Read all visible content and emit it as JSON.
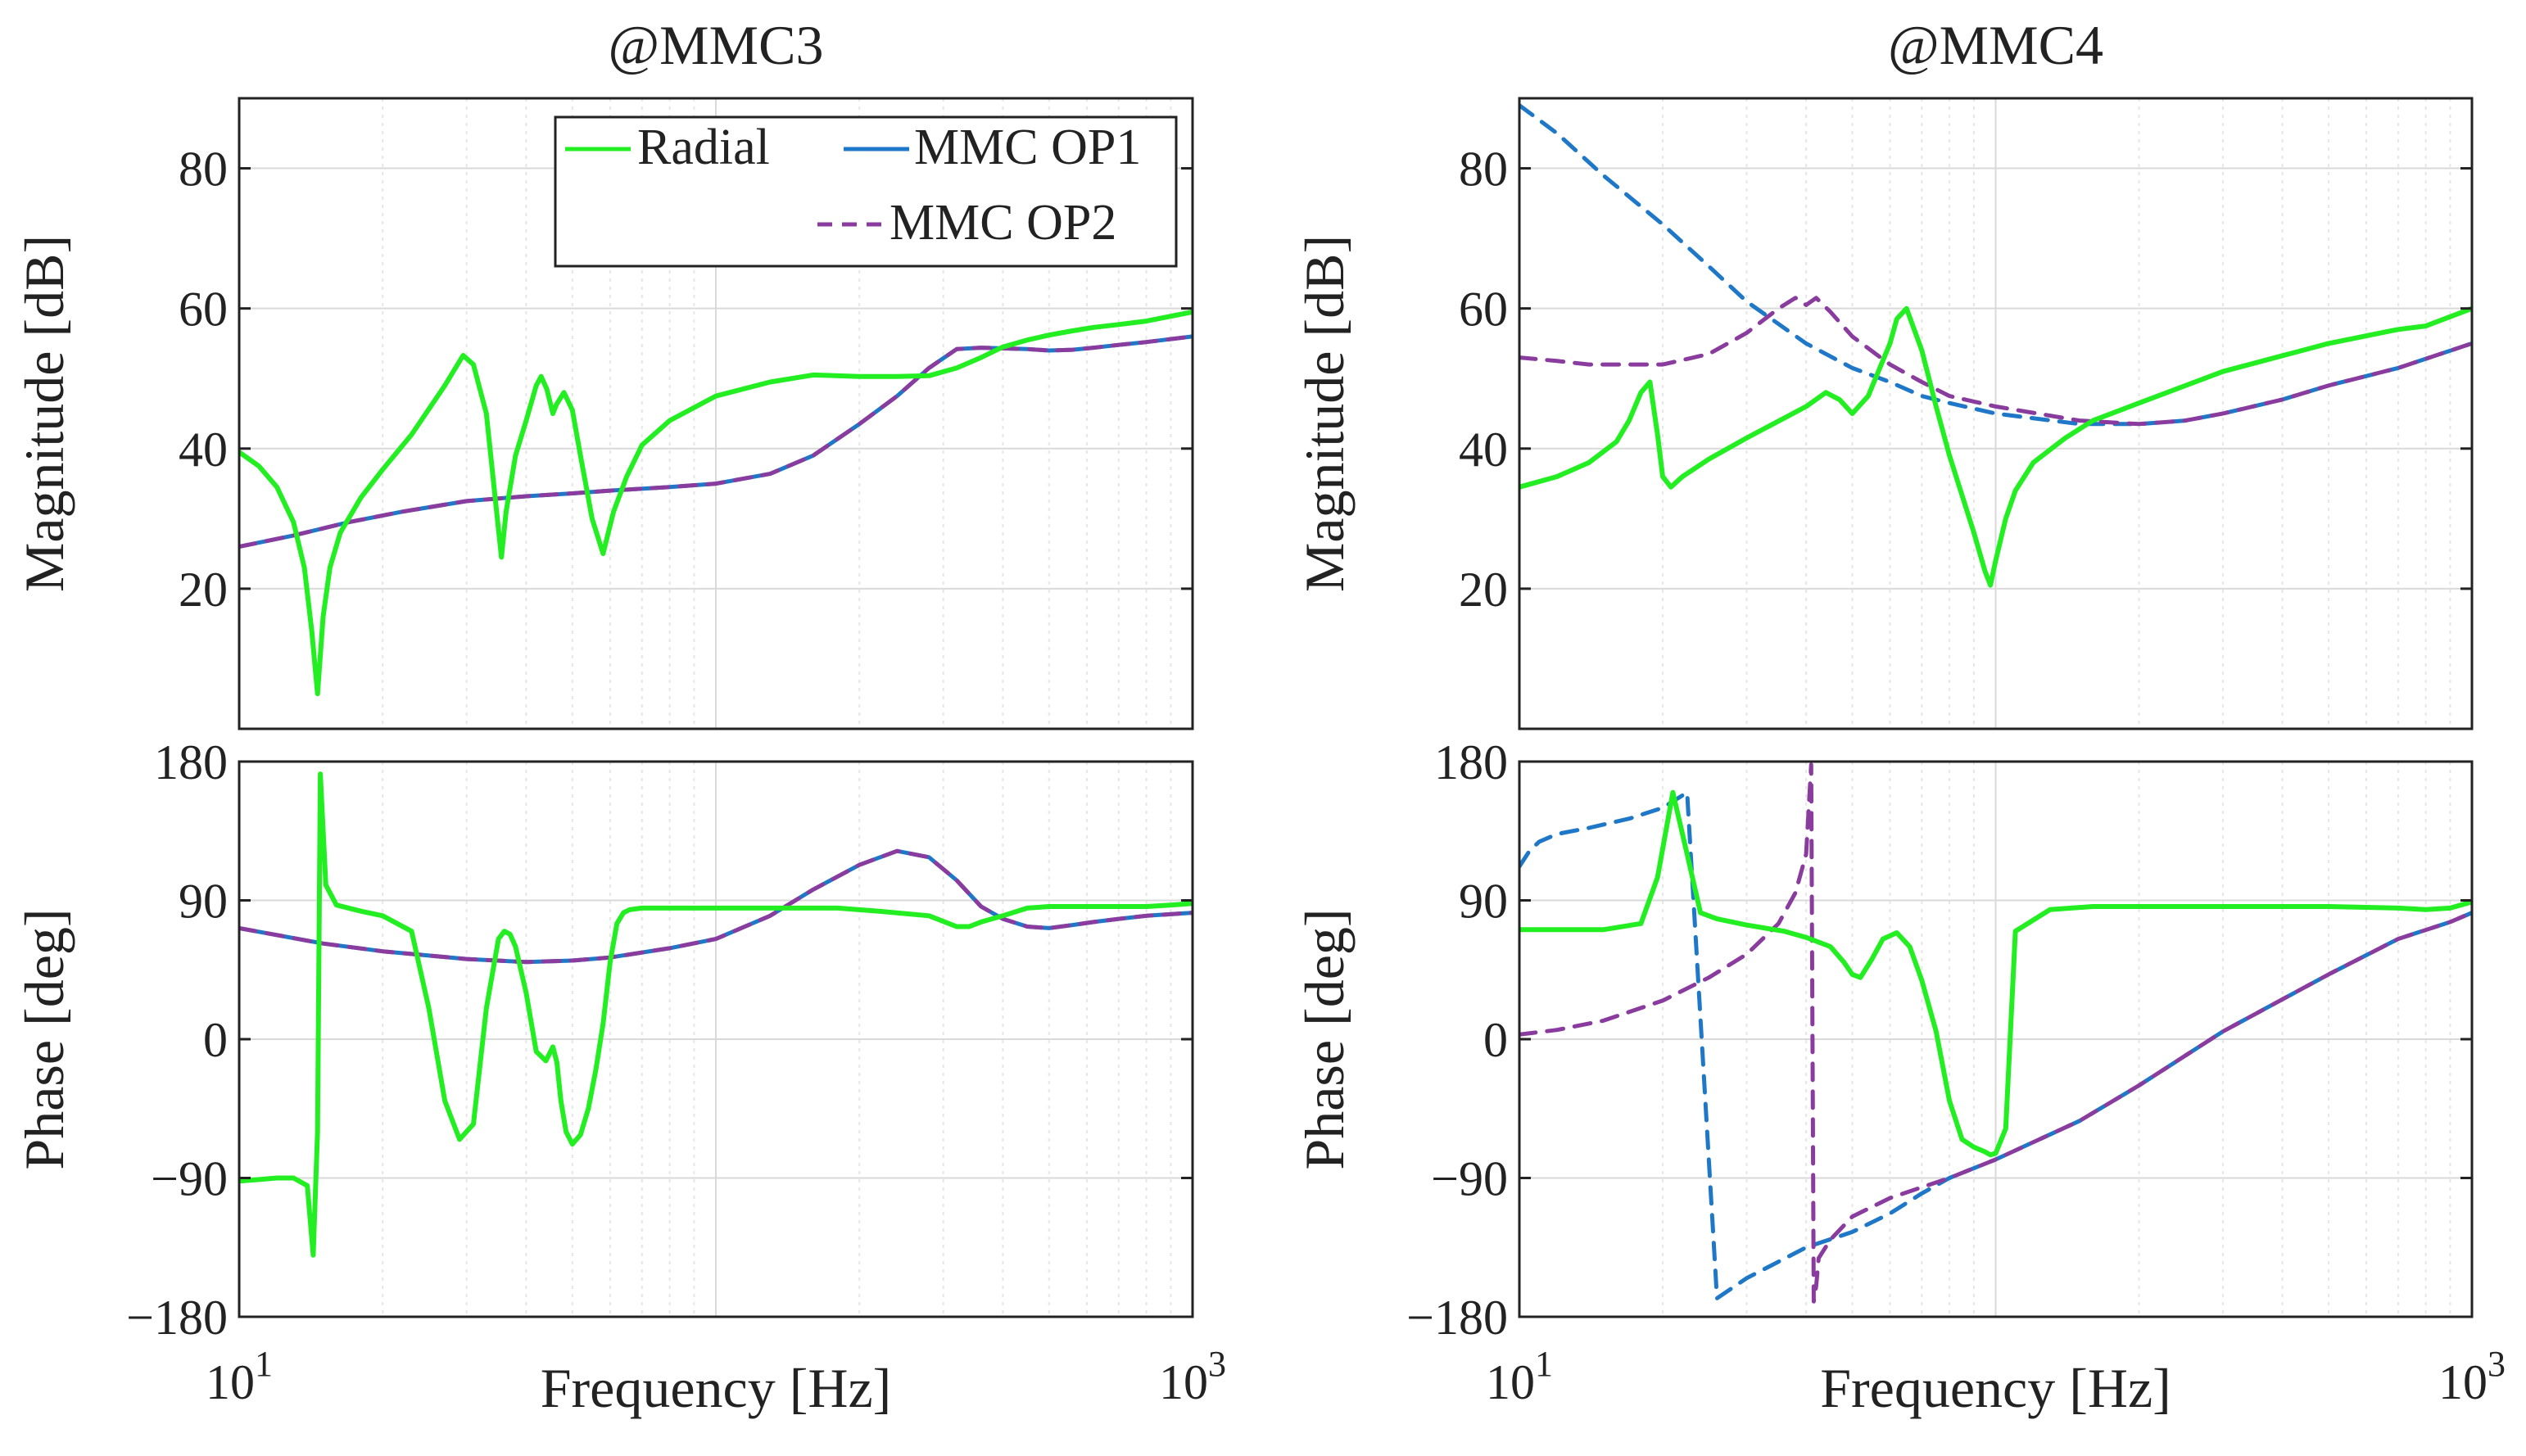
{
  "figure": {
    "colors": {
      "radial": "#22ee22",
      "op1": "#1f77c8",
      "op2": "#8a3c9e",
      "axes": "#222222",
      "grid": "#d9d9d9",
      "grid_minor": "#e6e6e6"
    }
  },
  "chart_data": [
    {
      "type": "line",
      "panel": "mag",
      "title": "@MMC3",
      "xlabel": "",
      "ylabel": "Magnitude [dB]",
      "xscale": "log",
      "xlim": [
        10,
        1000
      ],
      "ylim": [
        0,
        90
      ],
      "yticks": [
        20,
        40,
        60,
        80
      ],
      "ytick_labels": [
        "20",
        "40",
        "60",
        "80"
      ],
      "grid": true,
      "legend": {
        "location": "top-right",
        "entries": [
          {
            "label": "Radial",
            "series": "radial",
            "style": "solid"
          },
          {
            "label": "MMC OP1",
            "series": "op1",
            "style": "solid"
          },
          {
            "label": "MMC OP2",
            "series": "op2",
            "style": "dashed"
          }
        ]
      },
      "series": [
        {
          "name": "MMC OP1",
          "key": "op1",
          "style": "solid",
          "x": [
            10,
            13,
            17,
            22,
            30,
            40,
            50,
            60,
            80,
            100,
            130,
            160,
            200,
            240,
            280,
            320,
            360,
            400,
            450,
            500,
            560,
            620,
            700,
            800,
            1000
          ],
          "y": [
            26,
            27.6,
            29.5,
            31,
            32.5,
            33.2,
            33.6,
            34,
            34.5,
            35,
            36.4,
            39,
            43.5,
            47.5,
            51.5,
            54.2,
            54.4,
            54.3,
            54.2,
            54,
            54.1,
            54.4,
            54.8,
            55.2,
            56
          ]
        },
        {
          "name": "MMC OP2",
          "key": "op2",
          "style": "dashed",
          "x": [
            10,
            13,
            17,
            22,
            30,
            40,
            50,
            60,
            80,
            100,
            130,
            160,
            200,
            240,
            280,
            320,
            360,
            400,
            450,
            500,
            560,
            620,
            700,
            800,
            1000
          ],
          "y": [
            26,
            27.6,
            29.5,
            31,
            32.5,
            33.2,
            33.6,
            34,
            34.5,
            35,
            36.4,
            39,
            43.5,
            47.5,
            51.5,
            54.2,
            54.4,
            54.3,
            54.2,
            54,
            54.1,
            54.4,
            54.8,
            55.2,
            56
          ]
        },
        {
          "name": "Radial",
          "key": "radial",
          "style": "solid",
          "x": [
            10,
            11,
            12,
            13,
            13.7,
            14.2,
            14.6,
            15,
            15.5,
            16.3,
            18,
            20,
            23,
            27,
            29.5,
            31,
            33,
            34.8,
            35.5,
            36.3,
            38,
            40,
            42,
            43,
            44.2,
            45.5,
            46.3,
            48,
            50,
            52,
            55,
            58,
            61,
            65,
            70,
            80,
            100,
            130,
            160,
            200,
            240,
            280,
            320,
            360,
            400,
            450,
            500,
            560,
            620,
            700,
            800,
            1000
          ],
          "y": [
            39.5,
            37.5,
            34.5,
            29.5,
            23,
            14,
            5,
            16,
            23,
            28,
            33,
            37,
            42,
            49,
            53.3,
            52,
            45,
            30,
            24.5,
            31,
            39,
            44,
            49,
            50.3,
            48.5,
            45,
            46.3,
            48,
            45.5,
            39,
            30,
            25,
            31,
            36,
            40.5,
            44,
            47.5,
            49.5,
            50.5,
            50.3,
            50.3,
            50.4,
            51.5,
            53,
            54.5,
            55.5,
            56.2,
            56.8,
            57.3,
            57.7,
            58.2,
            59.5
          ]
        }
      ]
    },
    {
      "type": "line",
      "panel": "phase",
      "title": "",
      "xlabel": "Frequency [Hz]",
      "ylabel": "Phase [deg]",
      "xscale": "log",
      "xlim": [
        10,
        1000
      ],
      "xticks": [
        10,
        1000
      ],
      "xtick_labels": [
        {
          "base": "10",
          "exp": "1"
        },
        {
          "base": "10",
          "exp": "3"
        }
      ],
      "ylim": [
        -180,
        180
      ],
      "yticks": [
        -180,
        -90,
        0,
        90,
        180
      ],
      "ytick_labels": [
        "−180",
        "−90",
        "0",
        "90",
        "180"
      ],
      "grid": true,
      "series": [
        {
          "name": "MMC OP1",
          "key": "op1",
          "style": "solid",
          "x": [
            10,
            15,
            20,
            30,
            40,
            50,
            60,
            80,
            100,
            130,
            160,
            200,
            240,
            280,
            320,
            360,
            400,
            450,
            500,
            560,
            620,
            700,
            800,
            1000
          ],
          "y": [
            72,
            62,
            57,
            52,
            50,
            51,
            53,
            59,
            65,
            80,
            97,
            113,
            122,
            118,
            103,
            86,
            78,
            73,
            72,
            74,
            76,
            78,
            80,
            82
          ]
        },
        {
          "name": "MMC OP2",
          "key": "op2",
          "style": "dashed",
          "x": [
            10,
            15,
            20,
            30,
            40,
            50,
            60,
            80,
            100,
            130,
            160,
            200,
            240,
            280,
            320,
            360,
            400,
            450,
            500,
            560,
            620,
            700,
            800,
            1000
          ],
          "y": [
            72,
            62,
            57,
            52,
            50,
            51,
            53,
            59,
            65,
            80,
            97,
            113,
            122,
            118,
            103,
            86,
            78,
            73,
            72,
            74,
            76,
            78,
            80,
            82
          ]
        },
        {
          "name": "Radial",
          "key": "radial",
          "style": "solid",
          "x": [
            10,
            11,
            12,
            13,
            13.9,
            14.3,
            14.6,
            14.8,
            15.2,
            16,
            18,
            20,
            23,
            25,
            27,
            29,
            31,
            33,
            35,
            36,
            37,
            38,
            40,
            42,
            44,
            45.5,
            46.4,
            47.3,
            48.5,
            50,
            52,
            54,
            56,
            58,
            60,
            62,
            64,
            66,
            70,
            80,
            100,
            140,
            180,
            220,
            280,
            320,
            340,
            360,
            400,
            450,
            500,
            600,
            700,
            800,
            900,
            1000
          ],
          "y": [
            -92,
            -91,
            -90,
            -90,
            -95,
            -140,
            -60,
            172,
            100,
            87,
            83,
            80,
            70,
            20,
            -40,
            -65,
            -55,
            20,
            65,
            70,
            68,
            60,
            30,
            -8,
            -14,
            -5,
            -15,
            -40,
            -60,
            -68,
            -62,
            -45,
            -20,
            10,
            50,
            75,
            82,
            84,
            85,
            85,
            85,
            85,
            85,
            83,
            80,
            73,
            73,
            76,
            80,
            85,
            86,
            86,
            86,
            86,
            87,
            88
          ]
        }
      ]
    },
    {
      "type": "line",
      "panel": "mag",
      "title": "@MMC4",
      "xlabel": "",
      "ylabel": "Magnitude [dB]",
      "xscale": "log",
      "xlim": [
        10,
        1000
      ],
      "ylim": [
        0,
        90
      ],
      "yticks": [
        20,
        40,
        60,
        80
      ],
      "ytick_labels": [
        "20",
        "40",
        "60",
        "80"
      ],
      "grid": true,
      "series": [
        {
          "name": "MMC OP1",
          "key": "op1",
          "style": "dashed",
          "x": [
            10,
            12,
            15,
            20,
            25,
            30,
            40,
            50,
            60,
            70,
            80,
            100,
            150,
            200,
            250,
            300,
            400,
            500,
            700,
            1000
          ],
          "y": [
            89,
            85,
            79,
            72,
            66,
            61,
            55,
            51.5,
            49.5,
            47.5,
            46.5,
            45,
            43.5,
            43.5,
            44,
            45,
            47,
            49,
            51.5,
            55
          ]
        },
        {
          "name": "MMC OP2",
          "key": "op2",
          "style": "dashed",
          "x": [
            10,
            12,
            14,
            17,
            20,
            25,
            30,
            35,
            38,
            40,
            42,
            45,
            50,
            60,
            70,
            80,
            100,
            150,
            200,
            250,
            300,
            400,
            500,
            700,
            1000
          ],
          "y": [
            53,
            52.5,
            52,
            52,
            52,
            53.5,
            56.5,
            60,
            61.5,
            60.5,
            61.5,
            59.5,
            56,
            52,
            49.5,
            47.5,
            46,
            44,
            43.5,
            44,
            45,
            47,
            49,
            51.5,
            55
          ]
        },
        {
          "name": "Radial",
          "key": "radial",
          "style": "solid",
          "x": [
            10,
            12,
            14,
            16,
            17,
            18,
            18.8,
            19.5,
            20,
            20.8,
            22,
            25,
            30,
            40,
            44,
            47,
            50,
            54,
            60,
            62,
            65,
            70,
            75,
            80,
            90,
            95,
            97.5,
            100,
            105,
            110,
            120,
            140,
            160,
            200,
            300,
            500,
            700,
            800,
            1000
          ],
          "y": [
            34.5,
            36,
            38,
            41,
            44,
            48,
            49.5,
            42,
            36,
            34.5,
            36,
            38.5,
            41.5,
            46,
            48,
            47,
            45,
            47.5,
            55,
            58.5,
            60,
            54,
            46,
            39,
            28,
            22.5,
            20.5,
            24,
            30,
            34,
            38,
            41.5,
            44,
            46.5,
            51,
            55,
            57,
            57.5,
            60
          ]
        }
      ]
    },
    {
      "type": "line",
      "panel": "phase",
      "title": "",
      "xlabel": "Frequency [Hz]",
      "ylabel": "Phase [deg]",
      "xscale": "log",
      "xlim": [
        10,
        1000
      ],
      "xticks": [
        10,
        1000
      ],
      "xtick_labels": [
        {
          "base": "10",
          "exp": "1"
        },
        {
          "base": "10",
          "exp": "3"
        }
      ],
      "ylim": [
        -180,
        180
      ],
      "yticks": [
        -180,
        -90,
        0,
        90,
        180
      ],
      "ytick_labels": [
        "−180",
        "−90",
        "0",
        "90",
        "180"
      ],
      "grid": true,
      "series": [
        {
          "name": "MMC OP1",
          "key": "op1",
          "style": "dashed",
          "x": [
            10,
            10.5,
            11,
            12,
            14,
            17,
            20,
            22.5,
            26,
            30,
            40,
            50,
            60,
            70,
            80,
            100,
            150,
            200,
            300,
            500,
            700,
            900,
            1000
          ],
          "y": [
            112,
            122,
            128,
            133,
            137,
            143,
            150,
            160,
            -168,
            -155,
            -135,
            -125,
            -113,
            -100,
            -90,
            -78,
            -53,
            -30,
            5,
            42,
            65,
            76,
            82
          ]
        },
        {
          "name": "MMC OP2",
          "key": "op2",
          "style": "dashed",
          "x": [
            10,
            12,
            15,
            20,
            25,
            30,
            35,
            38,
            40,
            41,
            41.5,
            42,
            42.5,
            45,
            50,
            60,
            70,
            80,
            100,
            150,
            200,
            300,
            500,
            700,
            900,
            1000
          ],
          "y": [
            3,
            6,
            12,
            25,
            40,
            55,
            75,
            95,
            120,
            178,
            -170,
            -160,
            -142,
            -130,
            -115,
            -103,
            -96,
            -90,
            -78,
            -53,
            -30,
            5,
            42,
            65,
            76,
            82
          ]
        },
        {
          "name": "Radial",
          "key": "radial",
          "style": "solid",
          "x": [
            10,
            12,
            15,
            18,
            19.5,
            21,
            22.5,
            24,
            26,
            30,
            36,
            40,
            45,
            48,
            50,
            52,
            55,
            58,
            62,
            66,
            70,
            75,
            80,
            85,
            90,
            95,
            97.5,
            100,
            105,
            110,
            130,
            160,
            200,
            300,
            500,
            700,
            800,
            900,
            1000
          ],
          "y": [
            71,
            71,
            71,
            75,
            105,
            160,
            120,
            82,
            78,
            74,
            70,
            66,
            60,
            50,
            42,
            40,
            52,
            65,
            69,
            60,
            38,
            5,
            -40,
            -65,
            -70,
            -73,
            -75,
            -74,
            -58,
            70,
            84,
            86,
            86,
            86,
            86,
            85,
            84,
            85,
            89
          ]
        }
      ]
    }
  ]
}
